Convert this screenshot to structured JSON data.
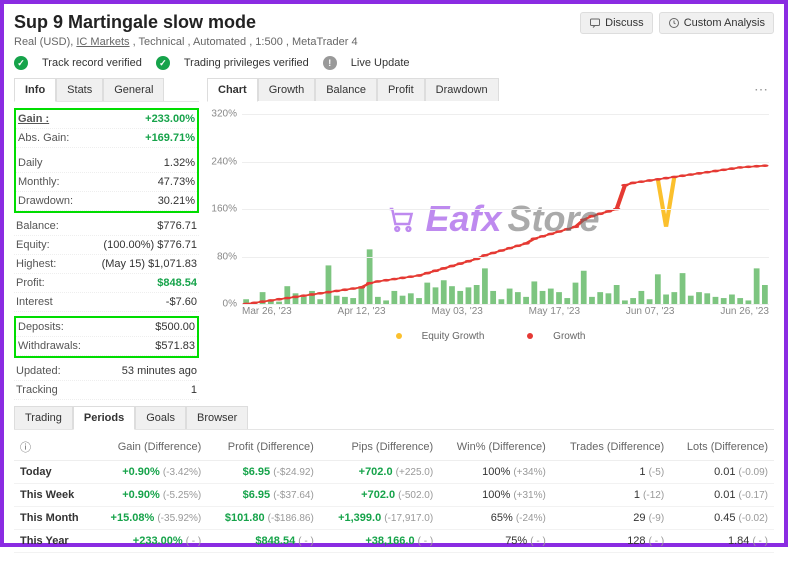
{
  "header": {
    "title": "Sup 9 Martingale slow mode",
    "discuss": "Discuss",
    "custom": "Custom Analysis",
    "sub_account": "Real (USD),",
    "sub_broker": "IC Markets",
    "sub_rest": ", Technical , Automated , 1:500 , MetaTrader 4",
    "v1": "Track record verified",
    "v2": "Trading privileges verified",
    "v3": "Live Update"
  },
  "sidebar": {
    "tabs": {
      "info": "Info",
      "stats": "Stats",
      "general": "General"
    },
    "rows": {
      "gain_l": "Gain :",
      "gain_v": "+233.00%",
      "abs_l": "Abs. Gain:",
      "abs_v": "+169.71%",
      "daily_l": "Daily",
      "daily_v": "1.32%",
      "monthly_l": "Monthly:",
      "monthly_v": "47.73%",
      "dd_l": "Drawdown:",
      "dd_v": "30.21%",
      "bal_l": "Balance:",
      "bal_v": "$776.71",
      "eq_l": "Equity:",
      "eq_v": "(100.00%) $776.71",
      "hi_l": "Highest:",
      "hi_v": "(May 15) $1,071.83",
      "pr_l": "Profit:",
      "pr_v": "$848.54",
      "int_l": "Interest",
      "int_v": "-$7.60",
      "dep_l": "Deposits:",
      "dep_v": "$500.00",
      "wd_l": "Withdrawals:",
      "wd_v": "$571.83",
      "upd_l": "Updated:",
      "upd_v": "53 minutes ago",
      "trk_l": "Tracking",
      "trk_v": "1"
    }
  },
  "chart": {
    "tabs": {
      "chart": "Chart",
      "growth": "Growth",
      "balance": "Balance",
      "profit": "Profit",
      "drawdown": "Drawdown"
    },
    "ylabels": [
      "320%",
      "240%",
      "160%",
      "80%",
      "0%"
    ],
    "xlabels": [
      "Mar 26, '23",
      "Apr 12, '23",
      "May 03, '23",
      "May 17, '23",
      "Jun 07, '23",
      "Jun 26, '23"
    ],
    "legend": {
      "a": "Equity Growth",
      "b": "Growth"
    },
    "bar_color": "#66bb6a",
    "bars": [
      8,
      3,
      20,
      6,
      4,
      30,
      18,
      12,
      22,
      8,
      65,
      14,
      12,
      10,
      28,
      92,
      12,
      6,
      22,
      14,
      18,
      10,
      36,
      28,
      40,
      30,
      22,
      28,
      32,
      60,
      22,
      8,
      26,
      20,
      12,
      38,
      22,
      26,
      20,
      10,
      36,
      56,
      12,
      20,
      18,
      32,
      6,
      10,
      22,
      8,
      50,
      16,
      20,
      52,
      14,
      20,
      18,
      12,
      10,
      16,
      10,
      6,
      60,
      32
    ],
    "growth": {
      "color": "#e53935",
      "y": [
        0,
        2,
        4,
        6,
        8,
        10,
        12,
        14,
        16,
        18,
        20,
        22,
        24,
        26,
        28,
        35,
        38,
        40,
        42,
        44,
        46,
        48,
        52,
        56,
        60,
        64,
        68,
        72,
        76,
        82,
        86,
        90,
        94,
        98,
        102,
        110,
        114,
        118,
        122,
        126,
        130,
        142,
        148,
        152,
        156,
        160,
        200,
        204,
        206,
        208,
        210,
        212,
        214,
        216,
        218,
        220,
        222,
        224,
        226,
        228,
        230,
        231,
        232,
        233
      ]
    },
    "equity": {
      "color": "#fbc02d",
      "y": [
        0,
        2,
        4,
        6,
        8,
        10,
        12,
        14,
        16,
        18,
        20,
        22,
        24,
        26,
        28,
        35,
        38,
        40,
        42,
        44,
        46,
        48,
        52,
        56,
        60,
        64,
        68,
        72,
        76,
        82,
        86,
        90,
        94,
        98,
        102,
        110,
        114,
        118,
        122,
        126,
        130,
        142,
        148,
        152,
        156,
        160,
        200,
        204,
        206,
        208,
        210,
        130,
        214,
        216,
        218,
        220,
        222,
        224,
        226,
        228,
        230,
        231,
        232,
        233
      ]
    },
    "ymax": 320
  },
  "periods": {
    "tabs": {
      "trading": "Trading",
      "periods": "Periods",
      "goals": "Goals",
      "browser": "Browser"
    },
    "headers": [
      "",
      "Gain (Difference)",
      "Profit (Difference)",
      "Pips (Difference)",
      "Win% (Difference)",
      "Trades (Difference)",
      "Lots (Difference)"
    ],
    "info_icon": "ⓘ",
    "rows": [
      {
        "label": "Today",
        "gain": "+0.90%",
        "gain_d": "(-3.42%)",
        "profit": "$6.95",
        "profit_d": "(-$24.92)",
        "pips": "+702.0",
        "pips_d": "(+225.0)",
        "win": "100%",
        "win_d": "(+34%)",
        "trades": "1",
        "trades_d": "(-5)",
        "lots": "0.01",
        "lots_d": "(-0.09)"
      },
      {
        "label": "This Week",
        "gain": "+0.90%",
        "gain_d": "(-5.25%)",
        "profit": "$6.95",
        "profit_d": "(-$37.64)",
        "pips": "+702.0",
        "pips_d": "(-502.0)",
        "win": "100%",
        "win_d": "(+31%)",
        "trades": "1",
        "trades_d": "(-12)",
        "lots": "0.01",
        "lots_d": "(-0.17)"
      },
      {
        "label": "This Month",
        "gain": "+15.08%",
        "gain_d": "(-35.92%)",
        "profit": "$101.80",
        "profit_d": "(-$186.86)",
        "pips": "+1,399.0",
        "pips_d": "(-17,917.0)",
        "win": "65%",
        "win_d": "(-24%)",
        "trades": "29",
        "trades_d": "(-9)",
        "lots": "0.45",
        "lots_d": "(-0.02)"
      },
      {
        "label": "This Year",
        "gain": "+233.00%",
        "gain_d": "( - )",
        "profit": "$848.54",
        "profit_d": "( - )",
        "pips": "+38,166.0",
        "pips_d": "( - )",
        "win": "75%",
        "win_d": "( - )",
        "trades": "128",
        "trades_d": "( - )",
        "lots": "1.84",
        "lots_d": "( - )"
      }
    ]
  }
}
